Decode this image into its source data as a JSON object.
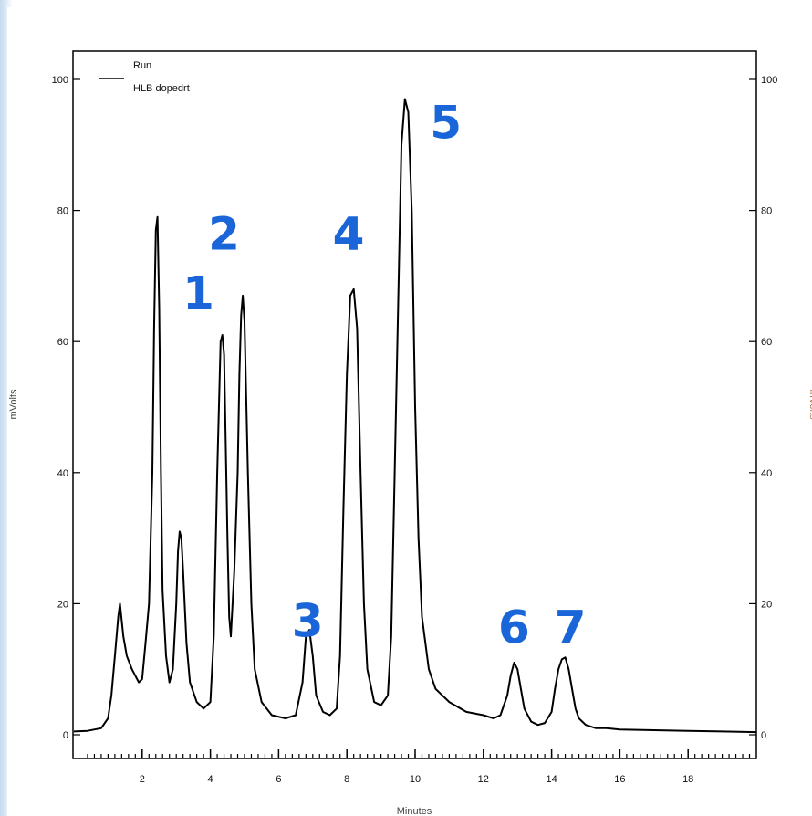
{
  "chart_data": {
    "type": "line",
    "title": "",
    "xlabel": "Minutes",
    "ylabel_left": "mVolts",
    "ylabel_right": "mVolts",
    "xlim": [
      0,
      20
    ],
    "ylim": [
      0,
      100
    ],
    "x_ticks": [
      2,
      4,
      6,
      8,
      10,
      12,
      14,
      16,
      18
    ],
    "y_ticks": [
      0,
      20,
      40,
      60,
      80,
      100
    ],
    "grid": false,
    "legend": {
      "placement": "top-left",
      "entries": [
        {
          "label": "Run"
        },
        {
          "label": "HLB dopedrt"
        }
      ]
    },
    "series": [
      {
        "color": "#000000",
        "x": [
          0.0,
          0.4,
          0.8,
          1.0,
          1.1,
          1.2,
          1.3,
          1.35,
          1.45,
          1.55,
          1.7,
          1.9,
          2.0,
          2.1,
          2.2,
          2.3,
          2.35,
          2.4,
          2.45,
          2.5,
          2.55,
          2.6,
          2.7,
          2.8,
          2.9,
          3.0,
          3.05,
          3.1,
          3.15,
          3.2,
          3.3,
          3.4,
          3.6,
          3.8,
          4.0,
          4.1,
          4.2,
          4.3,
          4.35,
          4.4,
          4.5,
          4.55,
          4.6,
          4.7,
          4.8,
          4.85,
          4.9,
          4.95,
          5.0,
          5.1,
          5.2,
          5.3,
          5.5,
          5.8,
          6.2,
          6.5,
          6.7,
          6.8,
          6.9,
          7.0,
          7.1,
          7.3,
          7.5,
          7.7,
          7.8,
          7.9,
          8.0,
          8.1,
          8.2,
          8.3,
          8.4,
          8.5,
          8.6,
          8.8,
          9.0,
          9.2,
          9.3,
          9.4,
          9.5,
          9.6,
          9.7,
          9.8,
          9.9,
          10.0,
          10.1,
          10.2,
          10.4,
          10.6,
          11.0,
          11.5,
          12.0,
          12.3,
          12.5,
          12.7,
          12.8,
          12.9,
          13.0,
          13.1,
          13.2,
          13.4,
          13.6,
          13.8,
          14.0,
          14.1,
          14.2,
          14.3,
          14.4,
          14.5,
          14.6,
          14.7,
          14.8,
          15.0,
          15.3,
          15.6,
          16.0,
          17.0,
          18.0,
          19.0,
          20.0
        ],
        "y": [
          0.5,
          0.6,
          1.0,
          2.5,
          6.0,
          12.0,
          18.0,
          20.0,
          15.0,
          12.0,
          10.0,
          8.0,
          8.5,
          14.0,
          20.0,
          40.0,
          62.0,
          77.0,
          79.0,
          65.0,
          40.0,
          22.0,
          12.0,
          8.0,
          10.0,
          20.0,
          28.0,
          31.0,
          30.0,
          25.0,
          14.0,
          8.0,
          5.0,
          4.0,
          5.0,
          15.0,
          40.0,
          60.0,
          61.0,
          58.0,
          30.0,
          18.0,
          15.0,
          25.0,
          40.0,
          55.0,
          64.0,
          67.0,
          63.0,
          40.0,
          20.0,
          10.0,
          5.0,
          3.0,
          2.5,
          3.0,
          8.0,
          15.0,
          16.0,
          12.0,
          6.0,
          3.5,
          3.0,
          4.0,
          12.0,
          35.0,
          55.0,
          67.0,
          68.0,
          62.0,
          40.0,
          20.0,
          10.0,
          5.0,
          4.5,
          6.0,
          15.0,
          40.0,
          65.0,
          90.0,
          97.0,
          95.0,
          80.0,
          50.0,
          30.0,
          18.0,
          10.0,
          7.0,
          5.0,
          3.5,
          3.0,
          2.5,
          3.0,
          6.0,
          9.0,
          11.0,
          10.0,
          7.0,
          4.0,
          2.0,
          1.5,
          1.8,
          3.5,
          7.0,
          10.0,
          11.5,
          11.8,
          10.0,
          7.0,
          4.0,
          2.5,
          1.5,
          1.0,
          1.0,
          0.8,
          0.7,
          0.6,
          0.5,
          0.4
        ]
      }
    ]
  },
  "peak_labels": [
    {
      "text": "1",
      "x": 3.65,
      "y": 65
    },
    {
      "text": "2",
      "x": 4.4,
      "y": 74
    },
    {
      "text": "3",
      "x": 6.85,
      "y": 15
    },
    {
      "text": "4",
      "x": 8.05,
      "y": 74
    },
    {
      "text": "5",
      "x": 10.9,
      "y": 91
    },
    {
      "text": "6",
      "x": 12.9,
      "y": 14
    },
    {
      "text": "7",
      "x": 14.55,
      "y": 14
    }
  ]
}
